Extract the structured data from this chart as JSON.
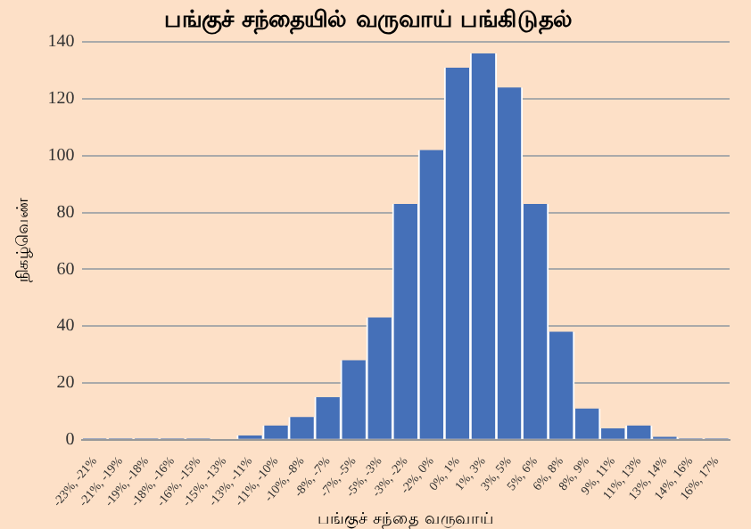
{
  "chart_data": {
    "type": "bar",
    "title": "பங்குச் சந்தையில் வருவாய் பங்கிடுதல்",
    "xlabel": "பங்குச் சந்தை வருவாய்",
    "ylabel": "நிகழ்வெண்",
    "categories": [
      "-23%, -21%",
      "-21%, -19%",
      "-19%, -18%",
      "-18%, -16%",
      "-16%, -15%",
      "-15%, -13%",
      "-13%, -11%",
      "-11%, -10%",
      "-10%, -8%",
      "-8%, -7%",
      "-7%, -5%",
      "-5%, -3%",
      "-3%, -2%",
      "-2%, 0%",
      "0%, 1%",
      "1%, 3%",
      "3%, 5%",
      "5%, 6%",
      "6%, 8%",
      "8%, 9%",
      "9%, 11%",
      "11%, 13%",
      "13%, 14%",
      "14%, 16%",
      "16%, 17%"
    ],
    "values": [
      0.5,
      0.5,
      0.5,
      0.5,
      0.5,
      0,
      1.5,
      5,
      8,
      15,
      28,
      43,
      83,
      102,
      131,
      136,
      124,
      83,
      38,
      11,
      4,
      5,
      1,
      0.5,
      0.5
    ],
    "color": "#4570b8",
    "ylim": [
      0,
      140
    ],
    "yticks": [
      0,
      20,
      40,
      60,
      80,
      100,
      120,
      140
    ],
    "grid": "y",
    "legend": false
  }
}
